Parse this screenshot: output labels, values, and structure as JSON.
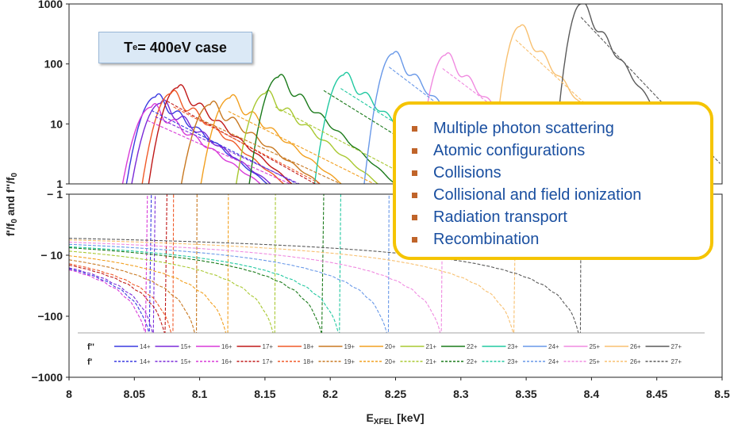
{
  "chart_data": {
    "type": "line",
    "xlabel": "E_XFEL [keV]",
    "xlabel_main": "E",
    "xlabel_sub": "XFEL",
    "xlabel_unit": " [keV]",
    "xlim": [
      8.0,
      8.5
    ],
    "x_ticks": [
      "8",
      "8.05",
      "8.1",
      "8.15",
      "8.2",
      "8.25",
      "8.3",
      "8.35",
      "8.4",
      "8.45",
      "8.5"
    ],
    "x_tick_values": [
      8.0,
      8.05,
      8.1,
      8.15,
      8.2,
      8.25,
      8.3,
      8.35,
      8.4,
      8.45,
      8.5
    ],
    "ylabel": "f'/f0 and f''/f0",
    "ylabel_parts": {
      "a": "f'/f",
      "a_sub": "0",
      "b": " and f''/f",
      "b_sub": "0"
    },
    "top_panel": {
      "scale": "log",
      "ylim": [
        1,
        1000
      ],
      "y_ticks": [
        "1",
        "10",
        "100",
        "1000"
      ],
      "y_tick_values": [
        1,
        10,
        100,
        1000
      ]
    },
    "bottom_panel": {
      "scale": "log, negative",
      "ylim": [
        -1000,
        -1
      ],
      "y_ticks": [
        "− 1",
        "− 10",
        "−100",
        "−1000"
      ],
      "y_tick_values": [
        -1,
        -10,
        -100,
        -1000
      ]
    },
    "annotation": {
      "main": "T",
      "sub": "e",
      "rest": " = 400eV case"
    },
    "legend": {
      "position": "bottom",
      "row_labels": [
        "f''",
        "f'"
      ],
      "entries": [
        "14+",
        "15+",
        "16+",
        "17+",
        "18+",
        "19+",
        "20+",
        "21+",
        "22+",
        "23+",
        "24+",
        "25+",
        "26+",
        "27+"
      ]
    },
    "colors": [
      "#3a3ae0",
      "#7a2ad8",
      "#d83ad8",
      "#c01818",
      "#f05a28",
      "#c87820",
      "#f2a020",
      "#a8c830",
      "#1a7a1a",
      "#20c8a0",
      "#6898e8",
      "#f08ae0",
      "#f8c070",
      "#5a5a5a"
    ],
    "series_fpp": [
      {
        "name": "14+",
        "peak_x": 8.066,
        "peak_y": 28
      },
      {
        "name": "15+",
        "peak_x": 8.07,
        "peak_y": 22
      },
      {
        "name": "16+",
        "peak_x": 8.063,
        "peak_y": 19
      },
      {
        "name": "17+",
        "peak_x": 8.083,
        "peak_y": 40
      },
      {
        "name": "18+",
        "peak_x": 8.078,
        "peak_y": 32
      },
      {
        "name": "19+",
        "peak_x": 8.108,
        "peak_y": 21
      },
      {
        "name": "20+",
        "peak_x": 8.123,
        "peak_y": 27
      },
      {
        "name": "21+",
        "peak_x": 8.15,
        "peak_y": 32
      },
      {
        "name": "22+",
        "peak_x": 8.16,
        "peak_y": 60
      },
      {
        "name": "23+",
        "peak_x": 8.21,
        "peak_y": 65
      },
      {
        "name": "24+",
        "peak_x": 8.248,
        "peak_y": 148
      },
      {
        "name": "25+",
        "peak_x": 8.288,
        "peak_y": 140
      },
      {
        "name": "26+",
        "peak_x": 8.345,
        "peak_y": 420
      },
      {
        "name": "27+",
        "peak_x": 8.392,
        "peak_y": 1000
      }
    ],
    "series_fp": [
      {
        "name": "14+",
        "edge_x": 8.063
      },
      {
        "name": "15+",
        "edge_x": 8.066
      },
      {
        "name": "16+",
        "edge_x": 8.06
      },
      {
        "name": "17+",
        "edge_x": 8.075
      },
      {
        "name": "18+",
        "edge_x": 8.08
      },
      {
        "name": "19+",
        "edge_x": 8.098
      },
      {
        "name": "20+",
        "edge_x": 8.122
      },
      {
        "name": "21+",
        "edge_x": 8.158
      },
      {
        "name": "22+",
        "edge_x": 8.195
      },
      {
        "name": "23+",
        "edge_x": 8.208
      },
      {
        "name": "24+",
        "edge_x": 8.245
      },
      {
        "name": "25+",
        "edge_x": 8.286
      },
      {
        "name": "26+",
        "edge_x": 8.342
      },
      {
        "name": "27+",
        "edge_x": 8.392
      }
    ]
  },
  "callout": {
    "items": [
      "Multiple photon scattering",
      "Atomic configurations",
      "Collisions",
      "Collisional and field ionization",
      "Radiation transport",
      "Recombination"
    ]
  }
}
